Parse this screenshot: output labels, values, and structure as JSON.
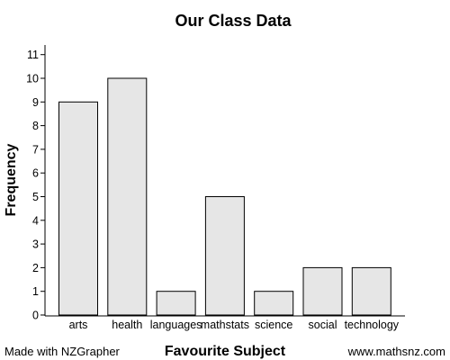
{
  "footer": {
    "left": "Made with NZGrapher",
    "right": "www.mathsnz.com"
  },
  "chart_data": {
    "type": "bar",
    "title": "Our Class Data",
    "xlabel": "Favourite Subject",
    "ylabel": "Frequency",
    "categories": [
      "arts",
      "health",
      "languages",
      "mathstats",
      "science",
      "social",
      "technology"
    ],
    "values": [
      9,
      10,
      1,
      5,
      1,
      2,
      2
    ],
    "ylim": [
      0,
      11
    ],
    "yticks": [
      0,
      1,
      2,
      3,
      4,
      5,
      6,
      7,
      8,
      9,
      10,
      11
    ],
    "grid": false,
    "bar_fill": "#e6e6e6",
    "bar_stroke": "#000000"
  }
}
